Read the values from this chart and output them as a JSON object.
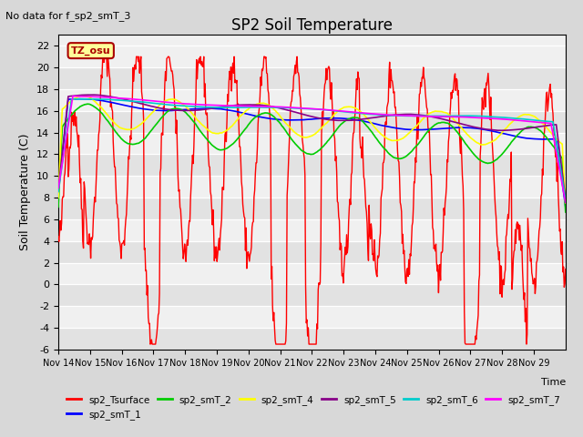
{
  "title": "SP2 Soil Temperature",
  "subtitle": "No data for f_sp2_smT_3",
  "ylabel": "Soil Temperature (C)",
  "xlabel": "Time",
  "timezone_label": "TZ_osu",
  "ylim": [
    -6,
    23
  ],
  "yticks": [
    -6,
    -4,
    -2,
    0,
    2,
    4,
    6,
    8,
    10,
    12,
    14,
    16,
    18,
    20,
    22
  ],
  "xtick_positions": [
    0,
    1,
    2,
    3,
    4,
    5,
    6,
    7,
    8,
    9,
    10,
    11,
    12,
    13,
    14,
    15
  ],
  "xtick_labels": [
    "Nov 14",
    "Nov 15",
    "Nov 16",
    "Nov 17",
    "Nov 18",
    "Nov 19",
    "Nov 20",
    "Nov 21",
    "Nov 22",
    "Nov 23",
    "Nov 24",
    "Nov 25",
    "Nov 26",
    "Nov 27",
    "Nov 28",
    "Nov 29"
  ],
  "legend_entries": [
    {
      "label": "sp2_Tsurface",
      "color": "#ff0000"
    },
    {
      "label": "sp2_smT_1",
      "color": "#0000ff"
    },
    {
      "label": "sp2_smT_2",
      "color": "#00cc00"
    },
    {
      "label": "sp2_smT_4",
      "color": "#ffff00"
    },
    {
      "label": "sp2_smT_5",
      "color": "#880088"
    },
    {
      "label": "sp2_smT_6",
      "color": "#00cccc"
    },
    {
      "label": "sp2_smT_7",
      "color": "#ff00ff"
    }
  ],
  "bg_color": "#d8d8d8",
  "plot_bg": "#f0f0f0"
}
